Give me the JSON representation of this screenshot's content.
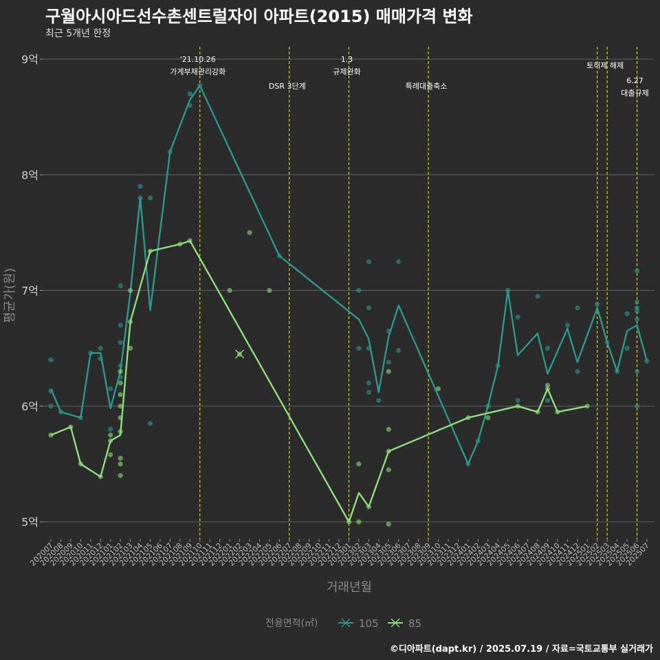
{
  "header": {
    "title": "구월아시아드선수촌센트럴자이 아파트(2015) 매매가격 변화",
    "subtitle": "최근 5개년 한정"
  },
  "caption": "©디아파트(dapt.kr) / 2025.07.19 / 자료=국토교통부 실거래가",
  "chart_data": {
    "type": "line",
    "xlabel": "거래년월",
    "ylabel": "평균가(원)",
    "ylim": [
      4.85,
      9.1
    ],
    "yticks": [
      {
        "v": 5,
        "label": "5억"
      },
      {
        "v": 6,
        "label": "6억"
      },
      {
        "v": 7,
        "label": "7억"
      },
      {
        "v": 8,
        "label": "8억"
      },
      {
        "v": 9,
        "label": "9억"
      }
    ],
    "grid": true,
    "legend": {
      "title": "전용면적(㎡)",
      "position": "bottom"
    },
    "categories": [
      "202007",
      "202008",
      "202009",
      "202010",
      "202011",
      "202012",
      "202101",
      "202102",
      "202103",
      "202104",
      "202105",
      "202106",
      "202107",
      "202108",
      "202109",
      "202110",
      "202111",
      "202112",
      "202201",
      "202202",
      "202203",
      "202204",
      "202205",
      "202206",
      "202207",
      "202208",
      "202209",
      "202210",
      "202211",
      "202212",
      "202301",
      "202302",
      "202303",
      "202304",
      "202305",
      "202306",
      "202307",
      "202308",
      "202309",
      "202310",
      "202311",
      "202312",
      "202401",
      "202402",
      "202403",
      "202404",
      "202405",
      "202406",
      "202407",
      "202408",
      "202409",
      "202410",
      "202411",
      "202412",
      "202501",
      "202502",
      "202503",
      "202504",
      "202505",
      "202506",
      "202507"
    ],
    "series": [
      {
        "name": "105",
        "color": "#2a9a8e",
        "line": [
          [
            "202007",
            6.15
          ],
          [
            "202008",
            5.95
          ],
          [
            "202010",
            5.9
          ],
          [
            "202011",
            6.46
          ],
          [
            "202012",
            6.46
          ],
          [
            "202101",
            5.98
          ],
          [
            "202102",
            6.3
          ],
          [
            "202103",
            6.98
          ],
          [
            "202104",
            7.8
          ],
          [
            "202105",
            6.83
          ],
          [
            "202107",
            8.2
          ],
          [
            "202109",
            8.65
          ],
          [
            "202110",
            8.77
          ],
          [
            "202206",
            7.3
          ],
          [
            "202302",
            6.75
          ],
          [
            "202303",
            6.58
          ],
          [
            "202304",
            6.12
          ],
          [
            "202305",
            6.6
          ],
          [
            "202306",
            6.87
          ],
          [
            "202401",
            5.5
          ],
          [
            "202402",
            5.7
          ],
          [
            "202403",
            6.0
          ],
          [
            "202404",
            6.35
          ],
          [
            "202405",
            7.0
          ],
          [
            "202406",
            6.44
          ],
          [
            "202408",
            6.63
          ],
          [
            "202409",
            6.28
          ],
          [
            "202411",
            6.67
          ],
          [
            "202412",
            6.38
          ],
          [
            "202502",
            6.85
          ],
          [
            "202503",
            6.55
          ],
          [
            "202504",
            6.3
          ],
          [
            "202505",
            6.65
          ],
          [
            "202506",
            6.7
          ],
          [
            "202507",
            6.39
          ]
        ],
        "points": [
          [
            "202007",
            6.4
          ],
          [
            "202007",
            6.13
          ],
          [
            "202007",
            6.0
          ],
          [
            "202008",
            5.95
          ],
          [
            "202010",
            5.9
          ],
          [
            "202011",
            6.46
          ],
          [
            "202012",
            6.5
          ],
          [
            "202012",
            6.41
          ],
          [
            "202101",
            6.15
          ],
          [
            "202101",
            5.8
          ],
          [
            "202102",
            7.04
          ],
          [
            "202102",
            6.7
          ],
          [
            "202102",
            6.55
          ],
          [
            "202102",
            6.35
          ],
          [
            "202102",
            6.25
          ],
          [
            "202104",
            7.9
          ],
          [
            "202104",
            7.8
          ],
          [
            "202105",
            7.8
          ],
          [
            "202105",
            5.85
          ],
          [
            "202107",
            8.2
          ],
          [
            "202109",
            8.7
          ],
          [
            "202109",
            8.6
          ],
          [
            "202110",
            8.77
          ],
          [
            "202206",
            7.3
          ],
          [
            "202302",
            7.0
          ],
          [
            "202302",
            6.5
          ],
          [
            "202303",
            7.25
          ],
          [
            "202303",
            6.85
          ],
          [
            "202303",
            6.5
          ],
          [
            "202303",
            6.2
          ],
          [
            "202303",
            6.12
          ],
          [
            "202304",
            6.05
          ],
          [
            "202305",
            6.65
          ],
          [
            "202305",
            6.38
          ],
          [
            "202306",
            7.25
          ],
          [
            "202306",
            6.48
          ],
          [
            "202401",
            5.5
          ],
          [
            "202402",
            5.7
          ],
          [
            "202403",
            6.0
          ],
          [
            "202404",
            6.35
          ],
          [
            "202405",
            7.0
          ],
          [
            "202406",
            6.77
          ],
          [
            "202406",
            6.05
          ],
          [
            "202408",
            6.95
          ],
          [
            "202409",
            6.5
          ],
          [
            "202409",
            6.05
          ],
          [
            "202411",
            6.7
          ],
          [
            "202412",
            6.85
          ],
          [
            "202412",
            6.3
          ],
          [
            "202502",
            6.88
          ],
          [
            "202503",
            6.55
          ],
          [
            "202504",
            6.3
          ],
          [
            "202505",
            6.8
          ],
          [
            "202505",
            6.5
          ],
          [
            "202506",
            7.17
          ],
          [
            "202506",
            6.9
          ],
          [
            "202506",
            6.85
          ],
          [
            "202506",
            6.82
          ],
          [
            "202506",
            6.75
          ],
          [
            "202506",
            6.3
          ],
          [
            "202506",
            6.0
          ],
          [
            "202507",
            6.39
          ]
        ]
      },
      {
        "name": "85",
        "color": "#8ee07a",
        "line": [
          [
            "202007",
            5.75
          ],
          [
            "202009",
            5.82
          ],
          [
            "202010",
            5.5
          ],
          [
            "202012",
            5.39
          ],
          [
            "202101",
            5.7
          ],
          [
            "202102",
            5.75
          ],
          [
            "202103",
            6.73
          ],
          [
            "202105",
            7.34
          ],
          [
            "202108",
            7.4
          ],
          [
            "202109",
            7.43
          ],
          [
            "202301",
            5.0
          ],
          [
            "202302",
            5.25
          ],
          [
            "202303",
            5.13
          ],
          [
            "202305",
            5.61
          ],
          [
            "202401",
            5.9
          ],
          [
            "202406",
            6.0
          ],
          [
            "202408",
            5.95
          ],
          [
            "202409",
            6.15
          ],
          [
            "202410",
            5.95
          ],
          [
            "202501",
            6.0
          ]
        ],
        "points": [
          [
            "202007",
            5.75
          ],
          [
            "202009",
            5.82
          ],
          [
            "202010",
            5.5
          ],
          [
            "202012",
            5.39
          ],
          [
            "202101",
            5.75
          ],
          [
            "202101",
            5.7
          ],
          [
            "202101",
            5.58
          ],
          [
            "202102",
            6.3
          ],
          [
            "202102",
            6.2
          ],
          [
            "202102",
            6.1
          ],
          [
            "202102",
            6.0
          ],
          [
            "202102",
            5.9
          ],
          [
            "202102",
            5.78
          ],
          [
            "202102",
            5.55
          ],
          [
            "202102",
            5.5
          ],
          [
            "202102",
            5.4
          ],
          [
            "202103",
            7.0
          ],
          [
            "202103",
            6.73
          ],
          [
            "202103",
            6.5
          ],
          [
            "202105",
            7.34
          ],
          [
            "202108",
            7.4
          ],
          [
            "202109",
            7.43
          ],
          [
            "202202",
            6.45
          ],
          [
            "202203",
            7.5
          ],
          [
            "202201",
            7.0
          ],
          [
            "202205",
            7.0
          ],
          [
            "202301",
            5.0
          ],
          [
            "202302",
            5.5
          ],
          [
            "202302",
            5.0
          ],
          [
            "202303",
            5.13
          ],
          [
            "202305",
            6.3
          ],
          [
            "202305",
            5.8
          ],
          [
            "202305",
            5.61
          ],
          [
            "202305",
            5.45
          ],
          [
            "202305",
            4.98
          ],
          [
            "202310",
            6.15
          ],
          [
            "202401",
            5.9
          ],
          [
            "202403",
            5.9
          ],
          [
            "202406",
            6.0
          ],
          [
            "202408",
            5.95
          ],
          [
            "202409",
            6.18
          ],
          [
            "202409",
            6.15
          ],
          [
            "202410",
            5.95
          ],
          [
            "202501",
            6.0
          ]
        ]
      }
    ],
    "special_points": [
      {
        "series": "85",
        "x": "202202",
        "y": 6.45,
        "marker": "x"
      }
    ],
    "annotations": [
      {
        "x": "202110",
        "lines": [
          "'21.10.26",
          "가계부채관리강화"
        ],
        "level": 0
      },
      {
        "x": "202207",
        "lines": [
          "DSR 3단계"
        ],
        "level": 1
      },
      {
        "x": "202301",
        "lines": [
          "1.3",
          "규제완화"
        ],
        "level": 0
      },
      {
        "x": "202309",
        "lines": [
          "특례대출축소"
        ],
        "level": 1
      },
      {
        "x": "202502",
        "lines": [],
        "level": 0
      },
      {
        "x": "202503",
        "lines": [
          "토허제 해제"
        ],
        "level": 2
      },
      {
        "x": "202506",
        "lines": [
          "6.27",
          "대출규제"
        ],
        "level": 3
      }
    ]
  }
}
